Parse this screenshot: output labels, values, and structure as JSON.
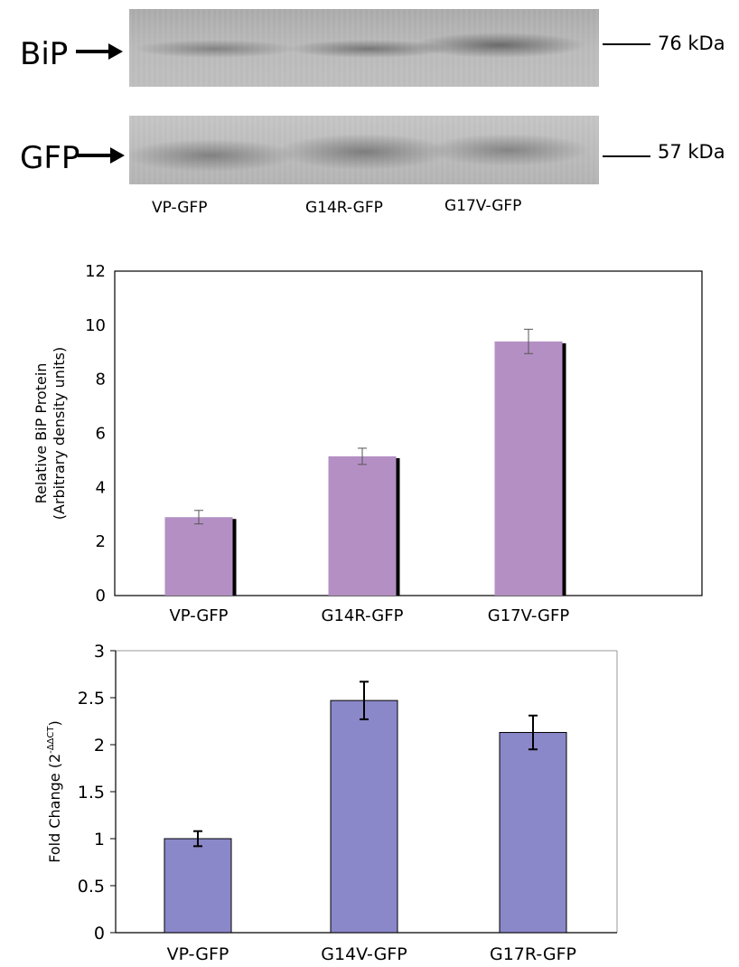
{
  "blot": {
    "rows": [
      {
        "label": "BiP",
        "size": "76 kDa"
      },
      {
        "label": "GFP",
        "size": "57 kDa"
      }
    ],
    "lanes": [
      "VP-GFP",
      "G14R-GFP",
      "G17V-GFP"
    ]
  },
  "chart_data": [
    {
      "type": "bar",
      "categories": [
        "VP-GFP",
        "G14R-GFP",
        "G17V-GFP"
      ],
      "values": [
        2.9,
        5.15,
        9.4
      ],
      "errors": [
        0.25,
        0.3,
        0.45
      ],
      "ylabel_line1": "Relative BiP Protein",
      "ylabel_line2": "(Arbitrary density units)",
      "yticks": [
        "0",
        "2",
        "4",
        "6",
        "8",
        "10",
        "12"
      ],
      "ylim": [
        0,
        12
      ],
      "bar_color": "#b48fc4",
      "shadow_color": "#000000"
    },
    {
      "type": "bar",
      "categories": [
        "VP-GFP",
        "G14V-GFP",
        "G17R-GFP"
      ],
      "values": [
        1.0,
        2.47,
        2.13
      ],
      "errors": [
        0.08,
        0.2,
        0.18
      ],
      "ylabel": "Fold Change (2",
      "ylabel_sup": "-ΔΔCT",
      "ylabel_end": ")",
      "yticks": [
        "0",
        "0.5",
        "1",
        "1.5",
        "2",
        "2.5",
        "3"
      ],
      "ylim": [
        0,
        3
      ],
      "bar_color": "#8a88c9",
      "bar_edge": "#000000"
    }
  ]
}
